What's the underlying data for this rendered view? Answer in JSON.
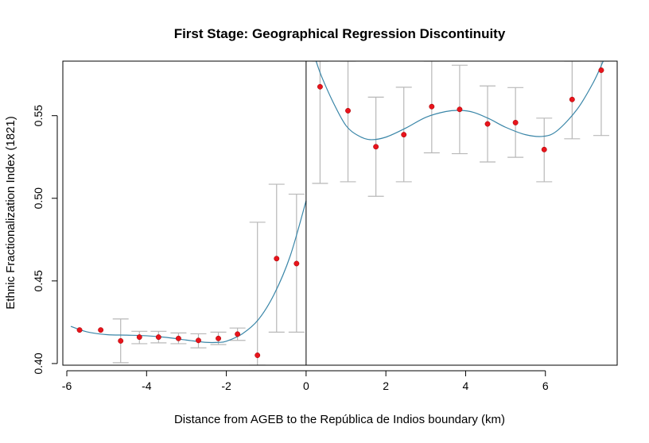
{
  "chart_data": {
    "type": "scatter",
    "title": "First Stage: Geographical Regression Discontinuity",
    "xlabel": "Distance from AGEB to the República de Indios boundary (km)",
    "ylabel": "Ethnic Fractionalization Index (1821)",
    "xlim": [
      -6.1,
      7.8
    ],
    "ylim": [
      0.399,
      0.583
    ],
    "xticks": [
      -6,
      -4,
      -2,
      0,
      2,
      4,
      6
    ],
    "xtick_labels": [
      "-6",
      "-4",
      "-2",
      "0",
      "2",
      "4",
      "6"
    ],
    "yticks": [
      0.4,
      0.45,
      0.5,
      0.55
    ],
    "ytick_labels": [
      "0.40",
      "0.45",
      "0.50",
      "0.55"
    ],
    "cutoff": 0,
    "grid": false,
    "colors": {
      "points": "#e8141c",
      "fit": "#3a86a8",
      "errorbars": "#b8b8b8",
      "axes": "#000000"
    },
    "points": [
      {
        "x": -5.68,
        "y": 0.4203,
        "lo": 0.4203,
        "hi": 0.4203
      },
      {
        "x": -5.15,
        "y": 0.4203,
        "lo": 0.4203,
        "hi": 0.4203
      },
      {
        "x": -4.65,
        "y": 0.4137,
        "lo": 0.4005,
        "hi": 0.427
      },
      {
        "x": -4.18,
        "y": 0.416,
        "lo": 0.412,
        "hi": 0.4195
      },
      {
        "x": -3.7,
        "y": 0.416,
        "lo": 0.4125,
        "hi": 0.4195
      },
      {
        "x": -3.2,
        "y": 0.4152,
        "lo": 0.412,
        "hi": 0.4185
      },
      {
        "x": -2.7,
        "y": 0.414,
        "lo": 0.4095,
        "hi": 0.418
      },
      {
        "x": -2.2,
        "y": 0.4152,
        "lo": 0.4115,
        "hi": 0.419
      },
      {
        "x": -1.72,
        "y": 0.4178,
        "lo": 0.414,
        "hi": 0.4215
      },
      {
        "x": -1.22,
        "y": 0.405,
        "lo": 0.399,
        "hi": 0.4855
      },
      {
        "x": -0.74,
        "y": 0.4635,
        "lo": 0.419,
        "hi": 0.5085
      },
      {
        "x": -0.24,
        "y": 0.4605,
        "lo": 0.419,
        "hi": 0.5025
      },
      {
        "x": 0.35,
        "y": 0.5675,
        "lo": 0.509,
        "hi": 0.583
      },
      {
        "x": 1.05,
        "y": 0.553,
        "lo": 0.51,
        "hi": 0.583
      },
      {
        "x": 1.75,
        "y": 0.5312,
        "lo": 0.5012,
        "hi": 0.5612
      },
      {
        "x": 2.45,
        "y": 0.5385,
        "lo": 0.51,
        "hi": 0.5672
      },
      {
        "x": 3.15,
        "y": 0.5555,
        "lo": 0.5275,
        "hi": 0.583
      },
      {
        "x": 3.85,
        "y": 0.5538,
        "lo": 0.527,
        "hi": 0.5805
      },
      {
        "x": 4.55,
        "y": 0.545,
        "lo": 0.522,
        "hi": 0.568
      },
      {
        "x": 5.25,
        "y": 0.5458,
        "lo": 0.5248,
        "hi": 0.567
      },
      {
        "x": 5.97,
        "y": 0.5295,
        "lo": 0.51,
        "hi": 0.5485
      },
      {
        "x": 6.67,
        "y": 0.5598,
        "lo": 0.536,
        "hi": 0.583
      },
      {
        "x": 7.4,
        "y": 0.5775,
        "lo": 0.538,
        "hi": 0.583
      }
    ],
    "fit_left": [
      {
        "x": -5.9,
        "y": 0.4225
      },
      {
        "x": -5.5,
        "y": 0.4192
      },
      {
        "x": -5.0,
        "y": 0.4175
      },
      {
        "x": -4.5,
        "y": 0.4172
      },
      {
        "x": -4.0,
        "y": 0.4168
      },
      {
        "x": -3.5,
        "y": 0.4158
      },
      {
        "x": -3.0,
        "y": 0.4142
      },
      {
        "x": -2.5,
        "y": 0.4128
      },
      {
        "x": -2.2,
        "y": 0.4128
      },
      {
        "x": -2.0,
        "y": 0.4135
      },
      {
        "x": -1.6,
        "y": 0.418
      },
      {
        "x": -1.2,
        "y": 0.4265
      },
      {
        "x": -0.8,
        "y": 0.442
      },
      {
        "x": -0.4,
        "y": 0.465
      },
      {
        "x": 0.0,
        "y": 0.4985
      }
    ],
    "fit_right": [
      {
        "x": 0.25,
        "y": 0.583
      },
      {
        "x": 0.4,
        "y": 0.573
      },
      {
        "x": 0.7,
        "y": 0.557
      },
      {
        "x": 1.0,
        "y": 0.544
      },
      {
        "x": 1.3,
        "y": 0.538
      },
      {
        "x": 1.6,
        "y": 0.5355
      },
      {
        "x": 2.0,
        "y": 0.537
      },
      {
        "x": 2.5,
        "y": 0.5425
      },
      {
        "x": 3.0,
        "y": 0.549
      },
      {
        "x": 3.5,
        "y": 0.5525
      },
      {
        "x": 3.85,
        "y": 0.5532
      },
      {
        "x": 4.2,
        "y": 0.552
      },
      {
        "x": 4.6,
        "y": 0.548
      },
      {
        "x": 5.0,
        "y": 0.543
      },
      {
        "x": 5.5,
        "y": 0.5385
      },
      {
        "x": 5.95,
        "y": 0.5375
      },
      {
        "x": 6.3,
        "y": 0.541
      },
      {
        "x": 6.8,
        "y": 0.554
      },
      {
        "x": 7.2,
        "y": 0.57
      },
      {
        "x": 7.45,
        "y": 0.583
      }
    ]
  }
}
